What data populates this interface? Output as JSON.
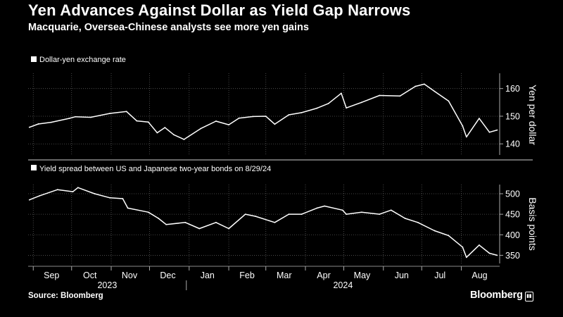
{
  "header": {
    "title": "Yen Advances Against Dollar as Yield Gap Narrows",
    "subtitle": "Macquarie, Oversea-Chinese analysts see more yen gains"
  },
  "footer": {
    "source": "Source: Bloomberg",
    "brand": "Bloomberg",
    "brand_icon": "bloomberg-chart-icon"
  },
  "colors": {
    "background": "#000000",
    "foreground": "#ffffff",
    "grid": "#555555"
  },
  "chart_data": [
    {
      "type": "line",
      "legend": "Dollar-yen exchange rate",
      "ylabel": "Yen per dollar",
      "ylim": [
        137,
        164
      ],
      "yticks": [
        140,
        150,
        160
      ],
      "grid": true,
      "x_months": [
        "Sep",
        "Oct",
        "Nov",
        "Dec",
        "Jan",
        "Feb",
        "Mar",
        "Apr",
        "May",
        "Jun",
        "Jul",
        "Aug"
      ],
      "x_years": [
        "2023",
        "2024"
      ],
      "x": [
        "2023-08-29",
        "2023-09-05",
        "2023-09-15",
        "2023-09-29",
        "2023-10-04",
        "2023-10-16",
        "2023-10-31",
        "2023-11-13",
        "2023-11-21",
        "2023-11-30",
        "2023-12-07",
        "2023-12-13",
        "2023-12-20",
        "2023-12-28",
        "2024-01-10",
        "2024-01-22",
        "2024-02-01",
        "2024-02-09",
        "2024-02-20",
        "2024-03-01",
        "2024-03-08",
        "2024-03-19",
        "2024-03-29",
        "2024-04-10",
        "2024-04-19",
        "2024-04-29",
        "2024-05-03",
        "2024-05-15",
        "2024-05-29",
        "2024-06-14",
        "2024-06-26",
        "2024-07-03",
        "2024-07-11",
        "2024-07-22",
        "2024-08-02",
        "2024-08-05",
        "2024-08-15",
        "2024-08-23",
        "2024-08-29"
      ],
      "values": [
        146.0,
        147.2,
        147.8,
        149.2,
        149.8,
        149.6,
        151.0,
        151.7,
        148.3,
        147.9,
        144.0,
        145.9,
        143.3,
        141.6,
        145.5,
        148.2,
        146.9,
        149.3,
        149.9,
        150.0,
        147.1,
        150.5,
        151.3,
        152.9,
        154.6,
        158.3,
        153.0,
        155.0,
        157.5,
        157.3,
        160.8,
        161.6,
        159.0,
        155.5,
        146.5,
        142.5,
        149.2,
        144.2,
        145.0
      ]
    },
    {
      "type": "line",
      "legend": "Yield spread between US and Japanese two-year bonds on 8/29/24",
      "ylabel": "Basis points",
      "ylim": [
        337,
        512
      ],
      "yticks": [
        350,
        400,
        450,
        500
      ],
      "grid": true,
      "x": [
        "2023-08-29",
        "2023-09-06",
        "2023-09-20",
        "2023-10-02",
        "2023-10-06",
        "2023-10-19",
        "2023-10-31",
        "2023-11-10",
        "2023-11-14",
        "2023-11-30",
        "2023-12-08",
        "2023-12-14",
        "2023-12-29",
        "2024-01-09",
        "2024-01-22",
        "2024-02-01",
        "2024-02-14",
        "2024-02-22",
        "2024-03-08",
        "2024-03-19",
        "2024-03-29",
        "2024-04-10",
        "2024-04-16",
        "2024-04-30",
        "2024-05-03",
        "2024-05-15",
        "2024-05-29",
        "2024-06-07",
        "2024-06-18",
        "2024-06-28",
        "2024-07-11",
        "2024-07-22",
        "2024-08-02",
        "2024-08-05",
        "2024-08-15",
        "2024-08-23",
        "2024-08-29"
      ],
      "values": [
        485,
        495,
        510,
        505,
        515,
        500,
        490,
        488,
        465,
        455,
        440,
        425,
        430,
        415,
        430,
        415,
        450,
        445,
        430,
        450,
        450,
        465,
        470,
        460,
        450,
        455,
        450,
        460,
        440,
        430,
        410,
        398,
        370,
        345,
        375,
        355,
        350
      ]
    }
  ]
}
